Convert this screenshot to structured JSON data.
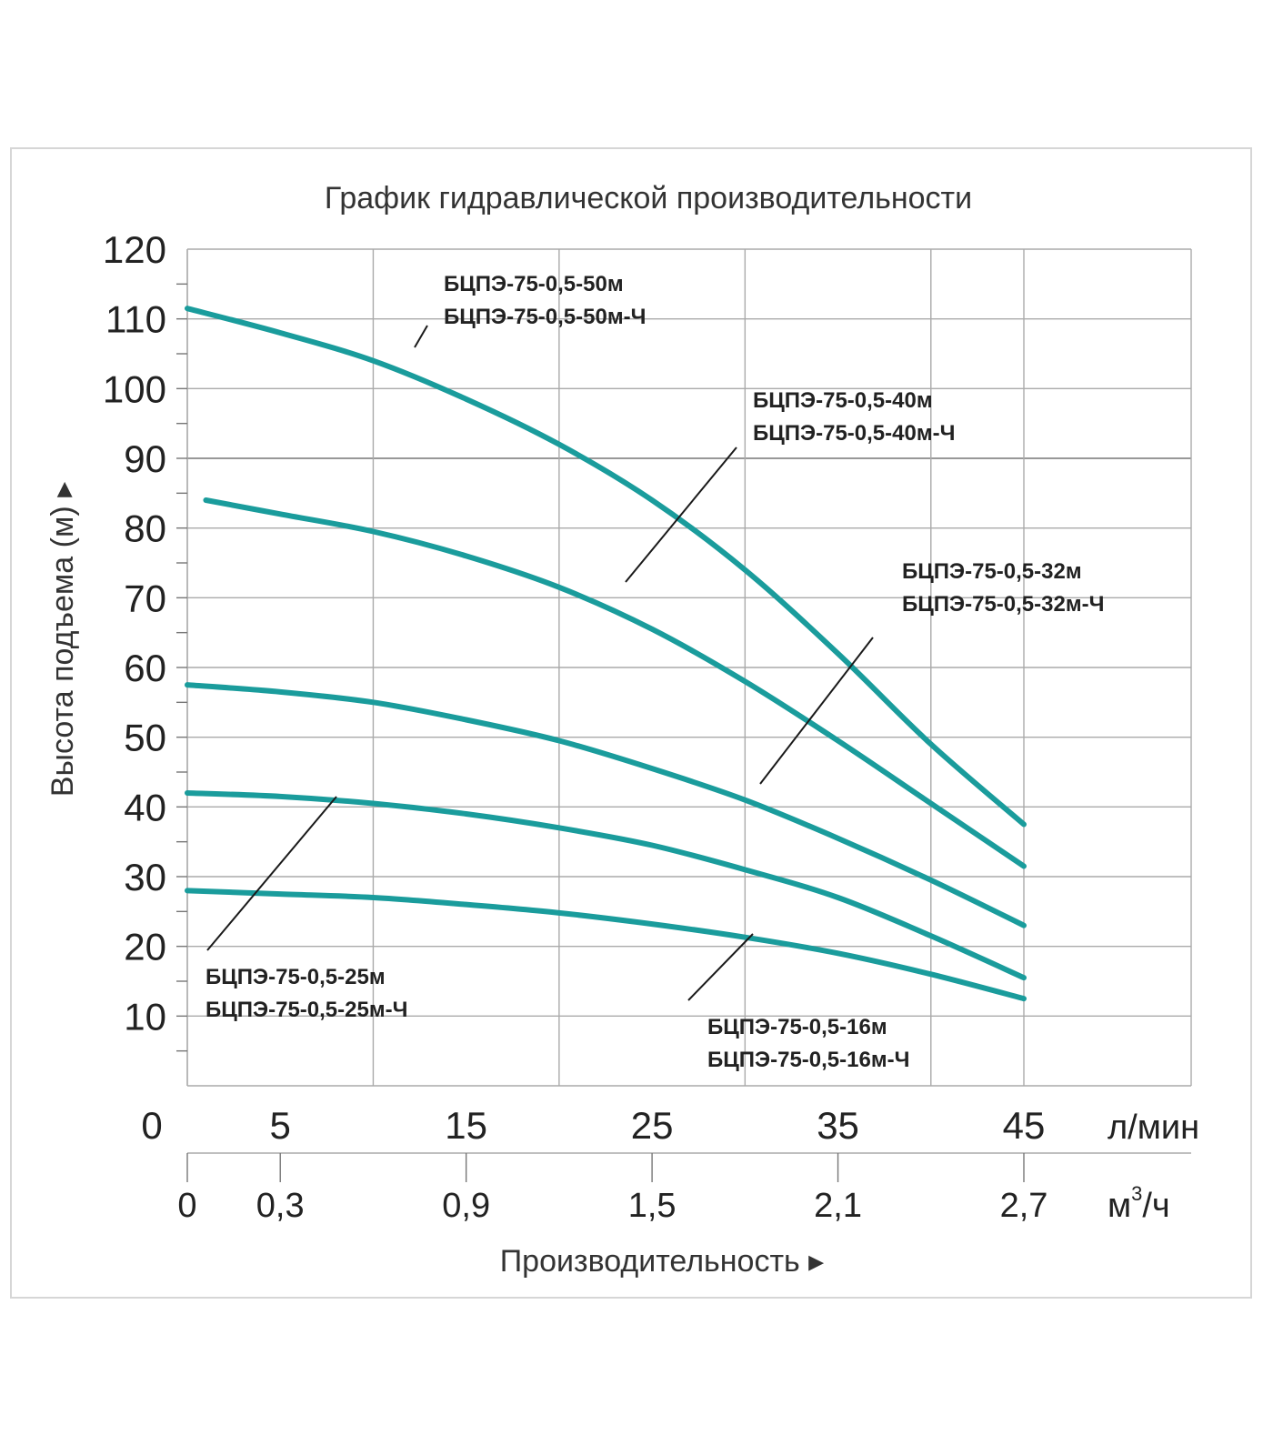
{
  "chart_data": {
    "type": "line",
    "title": "График гидравлической производительности",
    "ylabel": "Высота подъема (м) ▸",
    "xlabel": "Производительность ▸",
    "ylim": [
      0,
      120
    ],
    "xlim": [
      0,
      46.5
    ],
    "y_ticks": [
      "120",
      "110",
      "100",
      "90",
      "80",
      "70",
      "60",
      "50",
      "40",
      "30",
      "20",
      "10"
    ],
    "x_ticks": [
      "5",
      "15",
      "25",
      "35",
      "45"
    ],
    "x_zero_label": "0",
    "x_unit": "л/мин",
    "x2_ticks": [
      "0",
      "0,3",
      "0,9",
      "1,5",
      "2,1",
      "2,7"
    ],
    "x2_unit_main": "м",
    "x2_unit_sup": "3",
    "x2_unit_tail": "/ч",
    "line_color": "#1a9c9c",
    "series": [
      {
        "label_lines": [
          "БЦПЭ-75-0,5-50м",
          "БЦПЭ-75-0,5-50м-Ч"
        ],
        "x": [
          0,
          5,
          10,
          15,
          20,
          25,
          30,
          35,
          40,
          45
        ],
        "y": [
          111.5,
          108,
          104,
          98.5,
          92,
          84,
          74,
          62,
          49,
          37.5
        ]
      },
      {
        "label_lines": [
          "БЦПЭ-75-0,5-40м",
          "БЦПЭ-75-0,5-40м-Ч"
        ],
        "x": [
          1,
          5,
          10,
          15,
          20,
          25,
          30,
          35,
          40,
          45
        ],
        "y": [
          84,
          82,
          79.5,
          76,
          71.5,
          65.5,
          58,
          49.5,
          40.5,
          31.5
        ]
      },
      {
        "label_lines": [
          "БЦПЭ-75-0,5-32м",
          "БЦПЭ-75-0,5-32м-Ч"
        ],
        "x": [
          0,
          5,
          10,
          15,
          20,
          25,
          30,
          35,
          40,
          45
        ],
        "y": [
          57.5,
          56.5,
          55,
          52.5,
          49.5,
          45.5,
          41,
          35.5,
          29.5,
          23
        ]
      },
      {
        "label_lines": [
          "БЦПЭ-75-0,5-25м",
          "БЦПЭ-75-0,5-25м-Ч"
        ],
        "x": [
          0,
          5,
          10,
          15,
          20,
          25,
          30,
          35,
          40,
          45
        ],
        "y": [
          42,
          41.5,
          40.5,
          39,
          37,
          34.5,
          31,
          27,
          21.5,
          15.5
        ]
      },
      {
        "label_lines": [
          "БЦПЭ-75-0,5-16м",
          "БЦПЭ-75-0,5-16м-Ч"
        ],
        "x": [
          0,
          5,
          10,
          15,
          20,
          25,
          30,
          35,
          40,
          45
        ],
        "y": [
          28,
          27.5,
          27,
          26,
          24.8,
          23.2,
          21.3,
          19,
          16,
          12.5
        ]
      }
    ]
  }
}
